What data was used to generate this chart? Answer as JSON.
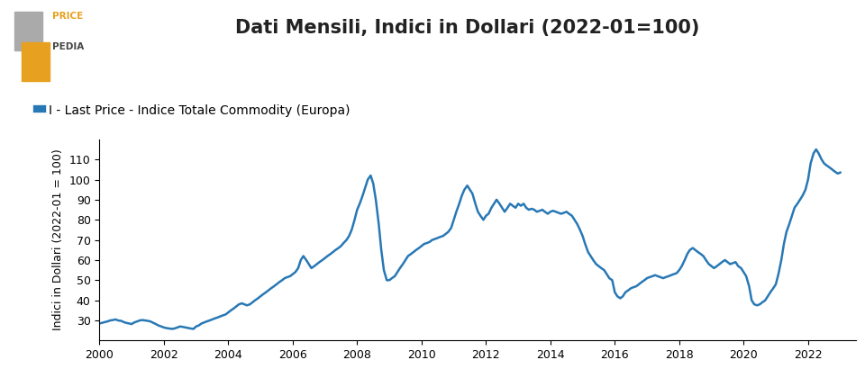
{
  "title": "Dati Mensili, Indici in Dollari (2022-01=100)",
  "ylabel": "Indici in Dollari (2022-01 = 100)",
  "legend_label": "I - Last Price - Indice Totale Commodity (Europa)",
  "line_color": "#2878b5",
  "line_width": 1.8,
  "xlim": [
    2000,
    2023.5
  ],
  "ylim": [
    20,
    120
  ],
  "yticks": [
    30,
    40,
    50,
    60,
    70,
    80,
    90,
    100,
    110
  ],
  "xticks": [
    2000,
    2002,
    2004,
    2006,
    2008,
    2010,
    2012,
    2014,
    2016,
    2018,
    2020,
    2022
  ],
  "logo_orange": "#e8a020",
  "logo_gray": "#aaaaaa",
  "background_color": "#ffffff",
  "data": [
    [
      2000.0,
      28.5
    ],
    [
      2000.08,
      28.8
    ],
    [
      2000.17,
      29.2
    ],
    [
      2000.25,
      29.5
    ],
    [
      2000.33,
      30.0
    ],
    [
      2000.42,
      30.2
    ],
    [
      2000.5,
      30.5
    ],
    [
      2000.58,
      30.0
    ],
    [
      2000.67,
      29.8
    ],
    [
      2000.75,
      29.2
    ],
    [
      2000.83,
      28.8
    ],
    [
      2000.92,
      28.5
    ],
    [
      2001.0,
      28.2
    ],
    [
      2001.08,
      29.0
    ],
    [
      2001.17,
      29.5
    ],
    [
      2001.25,
      30.0
    ],
    [
      2001.33,
      30.2
    ],
    [
      2001.42,
      30.0
    ],
    [
      2001.5,
      29.8
    ],
    [
      2001.58,
      29.5
    ],
    [
      2001.67,
      28.8
    ],
    [
      2001.75,
      28.2
    ],
    [
      2001.83,
      27.5
    ],
    [
      2001.92,
      27.0
    ],
    [
      2002.0,
      26.5
    ],
    [
      2002.08,
      26.2
    ],
    [
      2002.17,
      26.0
    ],
    [
      2002.25,
      25.8
    ],
    [
      2002.33,
      26.0
    ],
    [
      2002.42,
      26.5
    ],
    [
      2002.5,
      27.0
    ],
    [
      2002.58,
      26.8
    ],
    [
      2002.67,
      26.5
    ],
    [
      2002.75,
      26.2
    ],
    [
      2002.83,
      26.0
    ],
    [
      2002.92,
      25.8
    ],
    [
      2003.0,
      27.0
    ],
    [
      2003.08,
      27.5
    ],
    [
      2003.17,
      28.5
    ],
    [
      2003.25,
      29.0
    ],
    [
      2003.33,
      29.5
    ],
    [
      2003.42,
      30.0
    ],
    [
      2003.5,
      30.5
    ],
    [
      2003.58,
      31.0
    ],
    [
      2003.67,
      31.5
    ],
    [
      2003.75,
      32.0
    ],
    [
      2003.83,
      32.5
    ],
    [
      2003.92,
      33.0
    ],
    [
      2004.0,
      34.0
    ],
    [
      2004.08,
      35.0
    ],
    [
      2004.17,
      36.0
    ],
    [
      2004.25,
      37.0
    ],
    [
      2004.33,
      38.0
    ],
    [
      2004.42,
      38.5
    ],
    [
      2004.5,
      38.0
    ],
    [
      2004.58,
      37.5
    ],
    [
      2004.67,
      38.0
    ],
    [
      2004.75,
      39.0
    ],
    [
      2004.83,
      40.0
    ],
    [
      2004.92,
      41.0
    ],
    [
      2005.0,
      42.0
    ],
    [
      2005.08,
      43.0
    ],
    [
      2005.17,
      44.0
    ],
    [
      2005.25,
      45.0
    ],
    [
      2005.33,
      46.0
    ],
    [
      2005.42,
      47.0
    ],
    [
      2005.5,
      48.0
    ],
    [
      2005.58,
      49.0
    ],
    [
      2005.67,
      50.0
    ],
    [
      2005.75,
      51.0
    ],
    [
      2005.83,
      51.5
    ],
    [
      2005.92,
      52.0
    ],
    [
      2006.0,
      53.0
    ],
    [
      2006.08,
      54.0
    ],
    [
      2006.17,
      56.0
    ],
    [
      2006.25,
      60.0
    ],
    [
      2006.33,
      62.0
    ],
    [
      2006.42,
      60.0
    ],
    [
      2006.5,
      58.0
    ],
    [
      2006.58,
      56.0
    ],
    [
      2006.67,
      57.0
    ],
    [
      2006.75,
      58.0
    ],
    [
      2006.83,
      59.0
    ],
    [
      2006.92,
      60.0
    ],
    [
      2007.0,
      61.0
    ],
    [
      2007.08,
      62.0
    ],
    [
      2007.17,
      63.0
    ],
    [
      2007.25,
      64.0
    ],
    [
      2007.33,
      65.0
    ],
    [
      2007.42,
      66.0
    ],
    [
      2007.5,
      67.0
    ],
    [
      2007.58,
      68.5
    ],
    [
      2007.67,
      70.0
    ],
    [
      2007.75,
      72.0
    ],
    [
      2007.83,
      75.0
    ],
    [
      2007.92,
      80.0
    ],
    [
      2008.0,
      85.0
    ],
    [
      2008.08,
      88.0
    ],
    [
      2008.17,
      92.0
    ],
    [
      2008.25,
      96.0
    ],
    [
      2008.33,
      100.0
    ],
    [
      2008.42,
      102.0
    ],
    [
      2008.5,
      98.0
    ],
    [
      2008.58,
      90.0
    ],
    [
      2008.67,
      78.0
    ],
    [
      2008.75,
      65.0
    ],
    [
      2008.83,
      55.0
    ],
    [
      2008.92,
      50.0
    ],
    [
      2009.0,
      50.0
    ],
    [
      2009.08,
      51.0
    ],
    [
      2009.17,
      52.0
    ],
    [
      2009.25,
      54.0
    ],
    [
      2009.33,
      56.0
    ],
    [
      2009.42,
      58.0
    ],
    [
      2009.5,
      60.0
    ],
    [
      2009.58,
      62.0
    ],
    [
      2009.67,
      63.0
    ],
    [
      2009.75,
      64.0
    ],
    [
      2009.83,
      65.0
    ],
    [
      2009.92,
      66.0
    ],
    [
      2010.0,
      67.0
    ],
    [
      2010.08,
      68.0
    ],
    [
      2010.17,
      68.5
    ],
    [
      2010.25,
      69.0
    ],
    [
      2010.33,
      70.0
    ],
    [
      2010.42,
      70.5
    ],
    [
      2010.5,
      71.0
    ],
    [
      2010.58,
      71.5
    ],
    [
      2010.67,
      72.0
    ],
    [
      2010.75,
      73.0
    ],
    [
      2010.83,
      74.0
    ],
    [
      2010.92,
      76.0
    ],
    [
      2011.0,
      80.0
    ],
    [
      2011.08,
      84.0
    ],
    [
      2011.17,
      88.0
    ],
    [
      2011.25,
      92.0
    ],
    [
      2011.33,
      95.0
    ],
    [
      2011.42,
      97.0
    ],
    [
      2011.5,
      95.0
    ],
    [
      2011.58,
      93.0
    ],
    [
      2011.67,
      88.0
    ],
    [
      2011.75,
      84.0
    ],
    [
      2011.83,
      82.0
    ],
    [
      2011.92,
      80.0
    ],
    [
      2012.0,
      82.0
    ],
    [
      2012.08,
      83.0
    ],
    [
      2012.17,
      86.0
    ],
    [
      2012.25,
      88.0
    ],
    [
      2012.33,
      90.0
    ],
    [
      2012.42,
      88.0
    ],
    [
      2012.5,
      86.0
    ],
    [
      2012.58,
      84.0
    ],
    [
      2012.67,
      86.0
    ],
    [
      2012.75,
      88.0
    ],
    [
      2012.83,
      87.0
    ],
    [
      2012.92,
      86.0
    ],
    [
      2013.0,
      88.0
    ],
    [
      2013.08,
      87.0
    ],
    [
      2013.17,
      88.0
    ],
    [
      2013.25,
      86.0
    ],
    [
      2013.33,
      85.0
    ],
    [
      2013.42,
      85.5
    ],
    [
      2013.5,
      85.0
    ],
    [
      2013.58,
      84.0
    ],
    [
      2013.67,
      84.5
    ],
    [
      2013.75,
      85.0
    ],
    [
      2013.83,
      84.0
    ],
    [
      2013.92,
      83.0
    ],
    [
      2014.0,
      84.0
    ],
    [
      2014.08,
      84.5
    ],
    [
      2014.17,
      84.0
    ],
    [
      2014.25,
      83.5
    ],
    [
      2014.33,
      83.0
    ],
    [
      2014.42,
      83.5
    ],
    [
      2014.5,
      84.0
    ],
    [
      2014.58,
      83.0
    ],
    [
      2014.67,
      82.0
    ],
    [
      2014.75,
      80.0
    ],
    [
      2014.83,
      78.0
    ],
    [
      2014.92,
      75.0
    ],
    [
      2015.0,
      72.0
    ],
    [
      2015.08,
      68.0
    ],
    [
      2015.17,
      64.0
    ],
    [
      2015.25,
      62.0
    ],
    [
      2015.33,
      60.0
    ],
    [
      2015.42,
      58.0
    ],
    [
      2015.5,
      57.0
    ],
    [
      2015.58,
      56.0
    ],
    [
      2015.67,
      55.0
    ],
    [
      2015.75,
      53.0
    ],
    [
      2015.83,
      51.0
    ],
    [
      2015.92,
      50.0
    ],
    [
      2016.0,
      44.0
    ],
    [
      2016.08,
      42.0
    ],
    [
      2016.17,
      41.0
    ],
    [
      2016.25,
      42.0
    ],
    [
      2016.33,
      44.0
    ],
    [
      2016.42,
      45.0
    ],
    [
      2016.5,
      46.0
    ],
    [
      2016.58,
      46.5
    ],
    [
      2016.67,
      47.0
    ],
    [
      2016.75,
      48.0
    ],
    [
      2016.83,
      49.0
    ],
    [
      2016.92,
      50.0
    ],
    [
      2017.0,
      51.0
    ],
    [
      2017.08,
      51.5
    ],
    [
      2017.17,
      52.0
    ],
    [
      2017.25,
      52.5
    ],
    [
      2017.33,
      52.0
    ],
    [
      2017.42,
      51.5
    ],
    [
      2017.5,
      51.0
    ],
    [
      2017.58,
      51.5
    ],
    [
      2017.67,
      52.0
    ],
    [
      2017.75,
      52.5
    ],
    [
      2017.83,
      53.0
    ],
    [
      2017.92,
      53.5
    ],
    [
      2018.0,
      55.0
    ],
    [
      2018.08,
      57.0
    ],
    [
      2018.17,
      60.0
    ],
    [
      2018.25,
      63.0
    ],
    [
      2018.33,
      65.0
    ],
    [
      2018.42,
      66.0
    ],
    [
      2018.5,
      65.0
    ],
    [
      2018.58,
      64.0
    ],
    [
      2018.67,
      63.0
    ],
    [
      2018.75,
      62.0
    ],
    [
      2018.83,
      60.0
    ],
    [
      2018.92,
      58.0
    ],
    [
      2019.0,
      57.0
    ],
    [
      2019.08,
      56.0
    ],
    [
      2019.17,
      57.0
    ],
    [
      2019.25,
      58.0
    ],
    [
      2019.33,
      59.0
    ],
    [
      2019.42,
      60.0
    ],
    [
      2019.5,
      59.0
    ],
    [
      2019.58,
      58.0
    ],
    [
      2019.67,
      58.5
    ],
    [
      2019.75,
      59.0
    ],
    [
      2019.83,
      57.0
    ],
    [
      2019.92,
      56.0
    ],
    [
      2020.0,
      54.0
    ],
    [
      2020.08,
      52.0
    ],
    [
      2020.17,
      47.0
    ],
    [
      2020.25,
      40.0
    ],
    [
      2020.33,
      38.0
    ],
    [
      2020.42,
      37.5
    ],
    [
      2020.5,
      38.0
    ],
    [
      2020.58,
      39.0
    ],
    [
      2020.67,
      40.0
    ],
    [
      2020.75,
      42.0
    ],
    [
      2020.83,
      44.0
    ],
    [
      2020.92,
      46.0
    ],
    [
      2021.0,
      48.0
    ],
    [
      2021.08,
      53.0
    ],
    [
      2021.17,
      60.0
    ],
    [
      2021.25,
      68.0
    ],
    [
      2021.33,
      74.0
    ],
    [
      2021.42,
      78.0
    ],
    [
      2021.5,
      82.0
    ],
    [
      2021.58,
      86.0
    ],
    [
      2021.67,
      88.0
    ],
    [
      2021.75,
      90.0
    ],
    [
      2021.83,
      92.0
    ],
    [
      2021.92,
      95.0
    ],
    [
      2022.0,
      100.0
    ],
    [
      2022.08,
      108.0
    ],
    [
      2022.17,
      113.0
    ],
    [
      2022.25,
      115.0
    ],
    [
      2022.33,
      113.0
    ],
    [
      2022.42,
      110.0
    ],
    [
      2022.5,
      108.0
    ],
    [
      2022.58,
      107.0
    ],
    [
      2022.67,
      106.0
    ],
    [
      2022.75,
      105.0
    ],
    [
      2022.83,
      104.0
    ],
    [
      2022.92,
      103.0
    ],
    [
      2023.0,
      103.5
    ]
  ]
}
